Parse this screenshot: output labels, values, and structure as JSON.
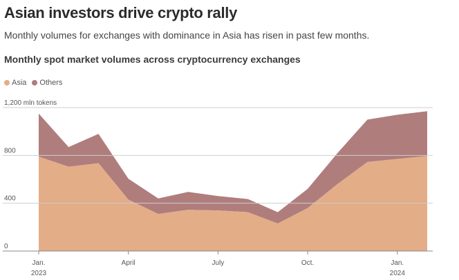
{
  "title": "Asian investors drive crypto rally",
  "subtitle": "Monthly volumes for exchanges with dominance in Asia has risen in past few months.",
  "chart_title": "Monthly spot market volumes across cryptocurrency exchanges",
  "colors": {
    "asia": "#e3ad88",
    "others": "#b07d7d",
    "grid": "#cfcfcf",
    "axis": "#888888"
  },
  "chart_data": {
    "type": "area",
    "stacked": true,
    "title": "Monthly spot market volumes across cryptocurrency exchanges",
    "ylabel": "mln tokens",
    "ylim": [
      0,
      1200
    ],
    "y_ticks": [
      0,
      400,
      800,
      1200
    ],
    "y_tick_labels": [
      "0",
      "400",
      "800",
      "1,200 mln tokens"
    ],
    "x": [
      "2023-01",
      "2023-02",
      "2023-03",
      "2023-04",
      "2023-05",
      "2023-06",
      "2023-07",
      "2023-08",
      "2023-09",
      "2023-10",
      "2023-11",
      "2023-12",
      "2024-01",
      "2024-02"
    ],
    "x_ticks": [
      {
        "index": 0,
        "label": "Jan.",
        "sublabel": "2023"
      },
      {
        "index": 3,
        "label": "April",
        "sublabel": ""
      },
      {
        "index": 6,
        "label": "July",
        "sublabel": ""
      },
      {
        "index": 9,
        "label": "Oct.",
        "sublabel": ""
      },
      {
        "index": 12,
        "label": "Jan.",
        "sublabel": "2024"
      }
    ],
    "series": [
      {
        "name": "Asia",
        "values": [
          790,
          705,
          735,
          430,
          310,
          345,
          340,
          325,
          230,
          360,
          560,
          745,
          770,
          795
        ]
      },
      {
        "name": "Others",
        "values": [
          360,
          165,
          245,
          175,
          130,
          150,
          120,
          110,
          95,
          160,
          260,
          355,
          370,
          375
        ]
      }
    ],
    "legend": [
      "Asia",
      "Others"
    ]
  }
}
